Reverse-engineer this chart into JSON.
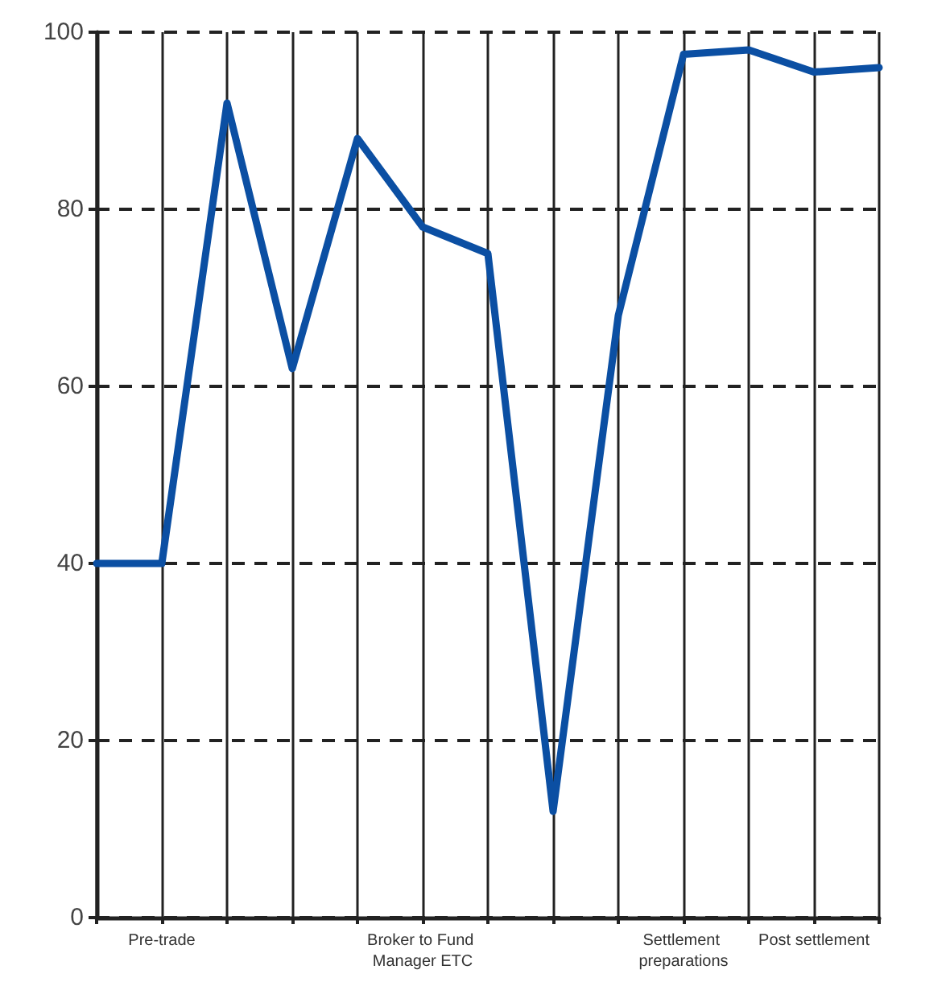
{
  "chart_data": {
    "type": "line",
    "categories": [
      null,
      "Pre-trade",
      null,
      null,
      null,
      "Broker to Fund Manager ETC",
      null,
      null,
      null,
      "Settlement preparations",
      null,
      "Post settlement",
      null
    ],
    "series": [
      {
        "color": "#0b4fa3",
        "values": [
          40,
          40,
          92,
          62,
          88,
          78,
          75,
          12,
          68,
          97.5,
          98,
          95.5,
          96
        ]
      }
    ],
    "ylim": [
      0,
      100
    ],
    "yticks": [
      0,
      20,
      40,
      60,
      80,
      100
    ],
    "grid": true,
    "marker": "none",
    "line_style": "solid"
  }
}
